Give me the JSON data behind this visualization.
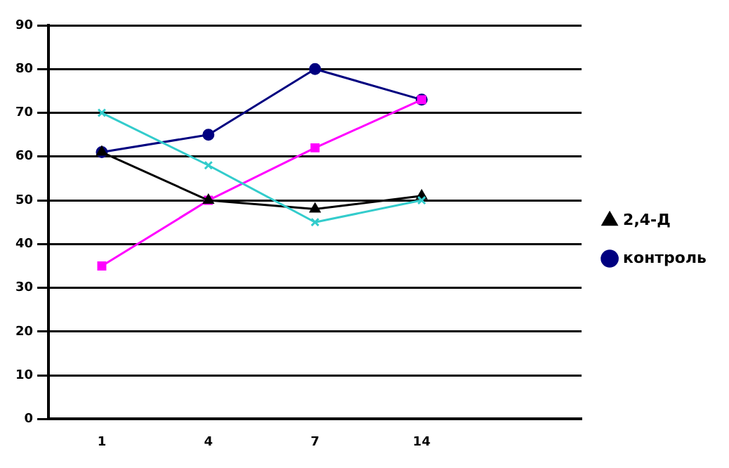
{
  "chart_data": {
    "type": "line",
    "categories": [
      "1",
      "4",
      "7",
      "14",
      null
    ],
    "series": [
      {
        "name": "контроль",
        "color": "#000080",
        "marker": "circle",
        "values": [
          61,
          65,
          80,
          73,
          null
        ]
      },
      {
        "color": "#ff00ff",
        "marker": "square",
        "values": [
          35,
          50,
          62,
          73,
          null
        ]
      },
      {
        "name": "2,4-Д",
        "color": "#000000",
        "marker": "triangle",
        "values": [
          61,
          50,
          48,
          51,
          null
        ]
      },
      {
        "color": "#33cccc",
        "marker": "cross",
        "values": [
          70,
          58,
          45,
          50,
          null
        ]
      }
    ],
    "ylim": [
      0,
      90
    ],
    "yticks": [
      0,
      10,
      20,
      30,
      40,
      50,
      60,
      70,
      80,
      90
    ],
    "grid": "y",
    "legend": "right"
  }
}
